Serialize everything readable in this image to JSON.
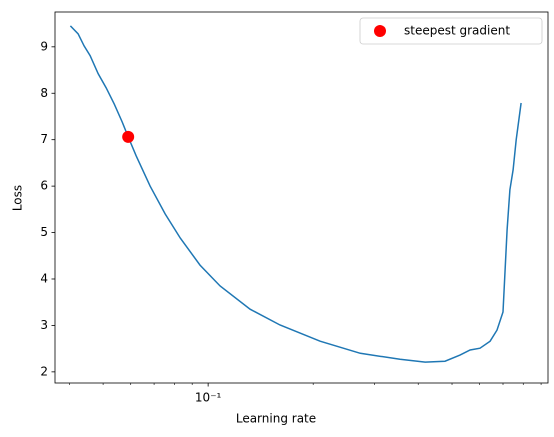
{
  "chart_data": {
    "type": "line",
    "xlabel": "Learning rate",
    "ylabel": "Loss",
    "xscale": "log",
    "xlim": [
      0.0364,
      0.942
    ],
    "xticks": [
      {
        "value": 0.1,
        "label": "10⁻¹"
      }
    ],
    "xminor_ticks": [
      0.04,
      0.05,
      0.06,
      0.07,
      0.08,
      0.09,
      0.2,
      0.3,
      0.4,
      0.5,
      0.6,
      0.7,
      0.8,
      0.9
    ],
    "ylim": [
      1.76,
      9.75
    ],
    "yticks": [
      2,
      3,
      4,
      5,
      6,
      7,
      8,
      9
    ],
    "legend": "upper right",
    "series": [
      {
        "color": "#1f77b4",
        "x": [
          0.0403,
          0.0424,
          0.0441,
          0.0459,
          0.0484,
          0.051,
          0.0538,
          0.0567,
          0.059,
          0.0622,
          0.0682,
          0.0753,
          0.0832,
          0.0948,
          0.1082,
          0.1319,
          0.1607,
          0.2094,
          0.2729,
          0.3548,
          0.4188,
          0.4775,
          0.5272,
          0.5635,
          0.6012,
          0.6427,
          0.673,
          0.6998,
          0.7194,
          0.7328,
          0.7482,
          0.7638,
          0.7889
        ],
        "values": [
          9.45,
          9.28,
          9.02,
          8.81,
          8.42,
          8.12,
          7.77,
          7.38,
          7.06,
          6.65,
          6.0,
          5.4,
          4.88,
          4.3,
          3.85,
          3.35,
          3.01,
          2.66,
          2.4,
          2.27,
          2.21,
          2.23,
          2.36,
          2.47,
          2.51,
          2.66,
          2.9,
          3.29,
          5.06,
          5.92,
          6.35,
          7.0,
          7.79
        ]
      },
      {
        "type": "scatter",
        "name": "steepest gradient",
        "color": "red",
        "x": [
          0.059
        ],
        "values": [
          7.06
        ]
      }
    ]
  }
}
